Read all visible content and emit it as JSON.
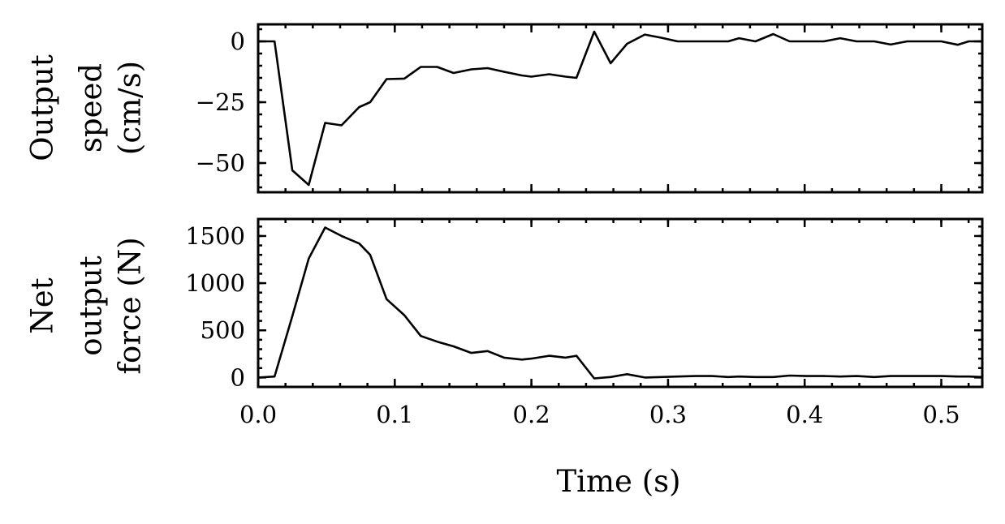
{
  "chart_data": [
    {
      "type": "line",
      "title": "",
      "xlabel": "",
      "ylabel_lines": [
        "Output",
        "speed",
        "(cm/s)"
      ],
      "xlim": [
        0.0,
        0.53
      ],
      "ylim": [
        -62,
        7
      ],
      "xticks": [
        0.0,
        0.1,
        0.2,
        0.3,
        0.4,
        0.5
      ],
      "xtick_labels": [],
      "yticks": [
        -50,
        -25,
        0
      ],
      "ytick_labels": [
        "−50",
        "−25",
        "0"
      ],
      "grid": false,
      "series": [
        {
          "x": [
            0.0,
            0.012,
            0.025,
            0.037,
            0.049,
            0.061,
            0.074,
            0.082,
            0.094,
            0.107,
            0.119,
            0.131,
            0.143,
            0.156,
            0.168,
            0.18,
            0.193,
            0.2,
            0.213,
            0.225,
            0.233,
            0.246,
            0.258,
            0.27,
            0.283,
            0.295,
            0.307,
            0.32,
            0.332,
            0.344,
            0.352,
            0.364,
            0.377,
            0.389,
            0.401,
            0.414,
            0.426,
            0.438,
            0.451,
            0.463,
            0.475,
            0.488,
            0.5,
            0.512,
            0.52,
            0.53
          ],
          "y": [
            0,
            0,
            -53,
            -59,
            -33.5,
            -34.5,
            -27,
            -25,
            -15.5,
            -15.3,
            -10.5,
            -10.5,
            -13,
            -11.5,
            -11,
            -12.5,
            -14,
            -14.5,
            -13.5,
            -14.5,
            -15,
            4,
            -9,
            -1,
            2.8,
            1.5,
            0,
            0,
            0,
            0,
            1.3,
            0,
            3,
            0,
            0,
            0,
            1.3,
            0,
            0,
            -1.3,
            0,
            0,
            0,
            -1.4,
            0,
            0
          ]
        }
      ]
    },
    {
      "type": "line",
      "title": "",
      "xlabel": "Time (s)",
      "ylabel_lines": [
        "Net",
        "output",
        "force (N)"
      ],
      "xlim": [
        0.0,
        0.53
      ],
      "ylim": [
        -100,
        1680
      ],
      "xticks": [
        0.0,
        0.1,
        0.2,
        0.3,
        0.4,
        0.5
      ],
      "xtick_labels": [
        "0.0",
        "0.1",
        "0.2",
        "0.3",
        "0.4",
        "0.5"
      ],
      "yticks": [
        0,
        500,
        1000,
        1500
      ],
      "ytick_labels": [
        "0",
        "500",
        "1000",
        "1500"
      ],
      "grid": false,
      "series": [
        {
          "x": [
            0.0,
            0.012,
            0.025,
            0.037,
            0.049,
            0.061,
            0.074,
            0.082,
            0.094,
            0.107,
            0.119,
            0.131,
            0.143,
            0.156,
            0.168,
            0.18,
            0.193,
            0.2,
            0.213,
            0.225,
            0.233,
            0.246,
            0.258,
            0.27,
            0.283,
            0.295,
            0.307,
            0.32,
            0.332,
            0.344,
            0.352,
            0.364,
            0.377,
            0.389,
            0.401,
            0.414,
            0.426,
            0.438,
            0.451,
            0.463,
            0.475,
            0.488,
            0.5,
            0.512,
            0.52,
            0.53
          ],
          "y": [
            0,
            10,
            650,
            1260,
            1590,
            1500,
            1420,
            1300,
            830,
            660,
            440,
            380,
            330,
            260,
            280,
            210,
            190,
            200,
            230,
            210,
            230,
            -10,
            5,
            35,
            0,
            5,
            10,
            15,
            15,
            5,
            10,
            5,
            5,
            20,
            15,
            15,
            10,
            15,
            5,
            15,
            15,
            15,
            15,
            10,
            10,
            5
          ]
        }
      ]
    }
  ]
}
